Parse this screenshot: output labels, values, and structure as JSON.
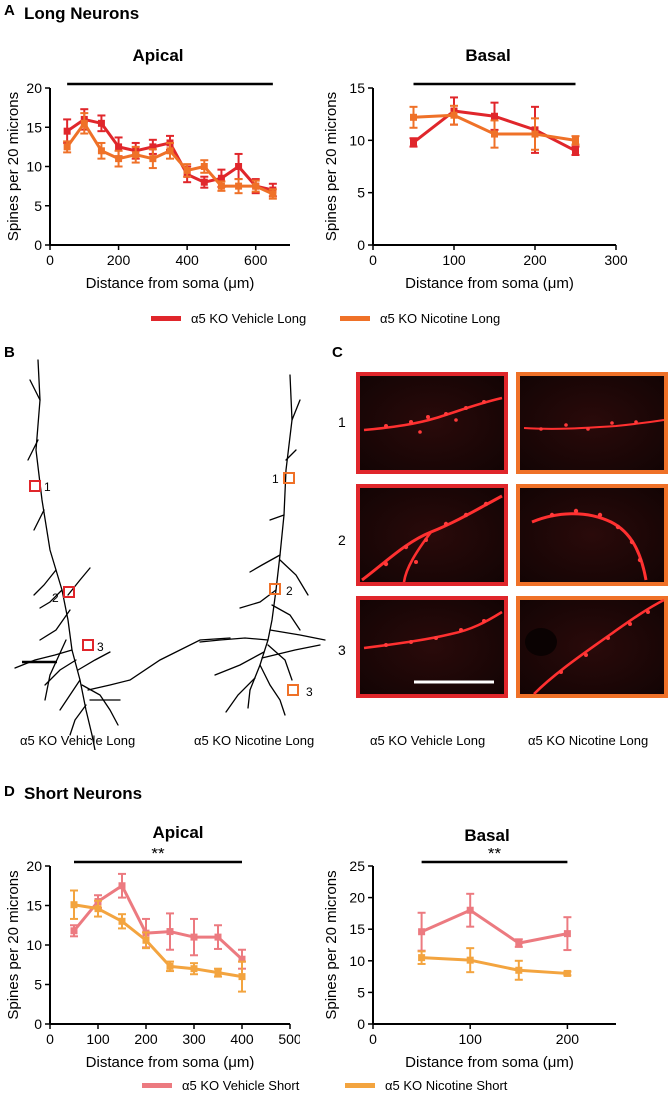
{
  "panels": {
    "a": "A",
    "b": "B",
    "c": "C",
    "d": "D"
  },
  "sections": {
    "long": "Long Neurons",
    "short": "Short Neurons"
  },
  "colors": {
    "vehicle_long": "#e0262b",
    "nicotine_long": "#ef7128",
    "vehicle_short": "#ec7a80",
    "nicotine_short": "#f3a43f",
    "vehicle_box": "#e0262b",
    "nicotine_box": "#ef7128"
  },
  "legends": {
    "long": [
      "α5 KO Vehicle Long",
      "α5 KO Nicotine Long"
    ],
    "short": [
      "α5 KO Vehicle Short",
      "α5 KO Nicotine Short"
    ]
  },
  "tracing": {
    "vehicle_caption": "α5 KO Vehicle Long",
    "nicotine_caption": "α5 KO Nicotine Long",
    "site_labels": [
      "1",
      "2",
      "3"
    ]
  },
  "micrographs": {
    "row_labels": [
      "1",
      "2",
      "3"
    ],
    "vehicle_caption": "α5 KO Vehicle Long",
    "nicotine_caption": "α5 KO Nicotine Long"
  },
  "chart_data": [
    {
      "id": "long-apical",
      "type": "line",
      "title": "Apical",
      "xlabel": "Distance from soma (μm)",
      "ylabel": "Spines per 20 microns",
      "xlim": [
        0,
        700
      ],
      "ylim": [
        0,
        20
      ],
      "xticks": [
        0,
        200,
        400,
        600
      ],
      "yticks": [
        0,
        5,
        10,
        15,
        20
      ],
      "significance_bar": [
        50,
        650
      ],
      "significance_label": "",
      "series": [
        {
          "name": "α5 KO Vehicle Long",
          "color_key": "vehicle_long",
          "x": [
            50,
            100,
            150,
            200,
            250,
            300,
            350,
            400,
            450,
            500,
            550,
            600,
            650
          ],
          "y": [
            14.5,
            16,
            15.5,
            12.5,
            12,
            12.5,
            13,
            9,
            8,
            8.5,
            10,
            7.5,
            7
          ],
          "err": [
            1.5,
            1.3,
            1,
            1.2,
            1,
            0.9,
            0.9,
            1,
            0.7,
            1.1,
            1.6,
            0.9,
            0.8
          ]
        },
        {
          "name": "α5 KO Nicotine Long",
          "color_key": "nicotine_long",
          "x": [
            50,
            100,
            150,
            200,
            250,
            300,
            350,
            400,
            450,
            500,
            550,
            600,
            650
          ],
          "y": [
            12.5,
            15.5,
            12,
            11,
            11.5,
            11,
            12,
            9.5,
            10,
            7.5,
            7.5,
            7.5,
            6.5
          ],
          "err": [
            0.7,
            1.3,
            1,
            1,
            1,
            1.2,
            1,
            0.8,
            0.8,
            0.6,
            0.9,
            0.7,
            0.6
          ]
        }
      ]
    },
    {
      "id": "long-basal",
      "type": "line",
      "title": "Basal",
      "xlabel": "Distance from soma (μm)",
      "ylabel": "Spines per 20 microns",
      "xlim": [
        0,
        300
      ],
      "ylim": [
        0,
        15
      ],
      "xticks": [
        0,
        100,
        200,
        300
      ],
      "yticks": [
        0,
        5,
        10,
        15
      ],
      "significance_bar": [
        50,
        250
      ],
      "significance_label": "",
      "series": [
        {
          "name": "α5 KO Vehicle Long",
          "color_key": "vehicle_long",
          "x": [
            50,
            100,
            150,
            200,
            250
          ],
          "y": [
            9.8,
            12.8,
            12.3,
            11,
            9
          ],
          "err": [
            0.4,
            1.3,
            1.3,
            2.2,
            0.4
          ]
        },
        {
          "name": "α5 KO Nicotine Long",
          "color_key": "nicotine_long",
          "x": [
            50,
            100,
            150,
            200,
            250
          ],
          "y": [
            12.2,
            12.4,
            10.6,
            10.6,
            10
          ],
          "err": [
            1,
            0.9,
            1.3,
            1.5,
            0.4
          ]
        }
      ]
    },
    {
      "id": "short-apical",
      "type": "line",
      "title": "Apical",
      "xlabel": "Distance from soma (μm)",
      "ylabel": "Spines per 20 microns",
      "xlim": [
        0,
        500
      ],
      "ylim": [
        0,
        20
      ],
      "xticks": [
        0,
        100,
        200,
        300,
        400,
        500
      ],
      "yticks": [
        0,
        5,
        10,
        15,
        20
      ],
      "significance_bar": [
        50,
        400
      ],
      "significance_label": "**",
      "series": [
        {
          "name": "α5 KO Vehicle Short",
          "color_key": "vehicle_short",
          "x": [
            50,
            100,
            150,
            200,
            250,
            300,
            350,
            400
          ],
          "y": [
            11.8,
            15.5,
            17.5,
            11.5,
            11.7,
            11,
            11,
            8.2
          ],
          "err": [
            0.7,
            0.8,
            1.5,
            1.8,
            2.3,
            2.3,
            1.5,
            1.2
          ]
        },
        {
          "name": "α5 KO Nicotine Short",
          "color_key": "nicotine_short",
          "x": [
            50,
            100,
            150,
            200,
            250,
            300,
            350,
            400
          ],
          "y": [
            15.1,
            14.6,
            13,
            10.6,
            7.3,
            7,
            6.5,
            6
          ],
          "err": [
            1.8,
            1,
            0.9,
            1,
            0.6,
            0.7,
            0.5,
            1.9
          ]
        }
      ]
    },
    {
      "id": "short-basal",
      "type": "line",
      "title": "Basal",
      "xlabel": "Distance from soma (μm)",
      "ylabel": "Spines per 20 microns",
      "xlim": [
        0,
        250
      ],
      "ylim": [
        0,
        25
      ],
      "xticks": [
        0,
        100,
        200
      ],
      "yticks": [
        0,
        5,
        10,
        15,
        20,
        25
      ],
      "significance_bar": [
        50,
        200
      ],
      "significance_label": "**",
      "series": [
        {
          "name": "α5 KO Vehicle Short",
          "color_key": "vehicle_short",
          "x": [
            50,
            100,
            150,
            200
          ],
          "y": [
            14.6,
            18,
            12.8,
            14.3
          ],
          "err": [
            3,
            2.6,
            0.6,
            2.6
          ]
        },
        {
          "name": "α5 KO Nicotine Short",
          "color_key": "nicotine_short",
          "x": [
            50,
            100,
            150,
            200
          ],
          "y": [
            10.5,
            10.1,
            8.5,
            8
          ],
          "err": [
            1,
            1.9,
            1.5,
            0.3
          ]
        }
      ]
    }
  ]
}
